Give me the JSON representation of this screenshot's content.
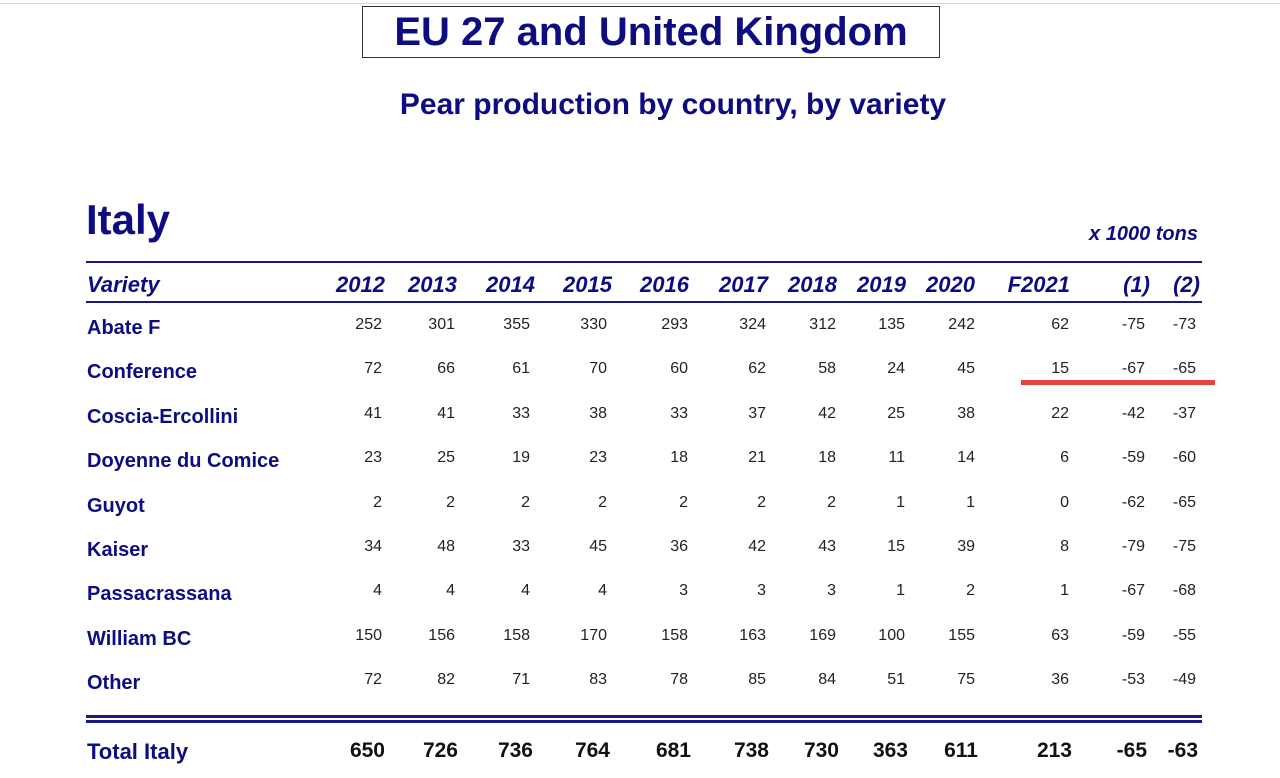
{
  "title": "EU 27 and United Kingdom",
  "subtitle": "Pear production by country, by variety",
  "country": "Italy",
  "unit": "x 1000 tons",
  "highlight_color": "#e0453c",
  "table": {
    "columns": [
      "Variety",
      "2012",
      "2013",
      "2014",
      "2015",
      "2016",
      "2017",
      "2018",
      "2019",
      "2020",
      "F2021",
      "(1)",
      "(2)"
    ],
    "rows": [
      {
        "variety": "Abate F",
        "values": [
          "252",
          "301",
          "355",
          "330",
          "293",
          "324",
          "312",
          "135",
          "242",
          "62",
          "-75",
          "-73"
        ]
      },
      {
        "variety": "Conference",
        "values": [
          "72",
          "66",
          "61",
          "70",
          "60",
          "62",
          "58",
          "24",
          "45",
          "15",
          "-67",
          "-65"
        ]
      },
      {
        "variety": "Coscia-Ercollini",
        "values": [
          "41",
          "41",
          "33",
          "38",
          "33",
          "37",
          "42",
          "25",
          "38",
          "22",
          "-42",
          "-37"
        ]
      },
      {
        "variety": "Doyenne du Comice",
        "values": [
          "23",
          "25",
          "19",
          "23",
          "18",
          "21",
          "18",
          "11",
          "14",
          "6",
          "-59",
          "-60"
        ]
      },
      {
        "variety": "Guyot",
        "values": [
          "2",
          "2",
          "2",
          "2",
          "2",
          "2",
          "2",
          "1",
          "1",
          "0",
          "-62",
          "-65"
        ]
      },
      {
        "variety": "Kaiser",
        "values": [
          "34",
          "48",
          "33",
          "45",
          "36",
          "42",
          "43",
          "15",
          "39",
          "8",
          "-79",
          "-75"
        ]
      },
      {
        "variety": "Passacrassana",
        "values": [
          "4",
          "4",
          "4",
          "4",
          "3",
          "3",
          "3",
          "1",
          "2",
          "1",
          "-67",
          "-68"
        ]
      },
      {
        "variety": "William BC",
        "values": [
          "150",
          "156",
          "158",
          "170",
          "158",
          "163",
          "169",
          "100",
          "155",
          "63",
          "-59",
          "-55"
        ]
      },
      {
        "variety": "Other",
        "values": [
          "72",
          "82",
          "71",
          "83",
          "78",
          "85",
          "84",
          "51",
          "75",
          "36",
          "-53",
          "-49"
        ]
      }
    ],
    "total": {
      "variety": "Total Italy",
      "values": [
        "650",
        "726",
        "736",
        "764",
        "681",
        "738",
        "730",
        "363",
        "611",
        "213",
        "-65",
        "-63"
      ]
    }
  }
}
